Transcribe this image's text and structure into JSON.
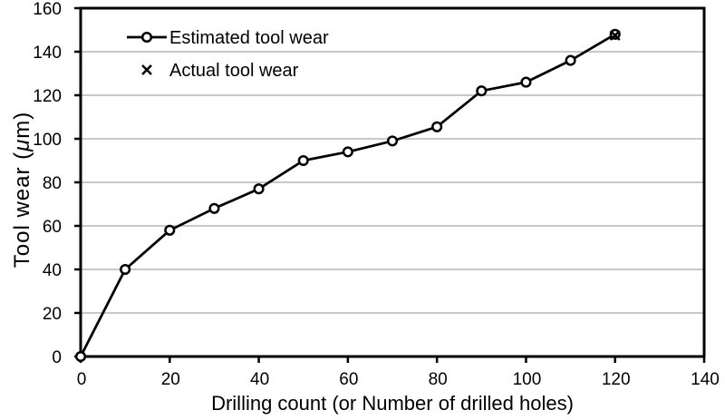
{
  "colors": {
    "axis": "#000000",
    "grid": "#a8a8a8",
    "text": "#000000",
    "series_line": "#000000",
    "marker_fill": "#ffffff",
    "background": "#ffffff"
  },
  "chart_data": {
    "type": "line",
    "title": "",
    "xlabel": "Drilling count (or Number of drilled holes)",
    "ylabel": "Tool wear (μm)",
    "xlim": [
      0,
      140
    ],
    "ylim": [
      0,
      160
    ],
    "xticks": [
      0,
      20,
      40,
      60,
      80,
      100,
      120,
      140
    ],
    "yticks": [
      0,
      20,
      40,
      60,
      80,
      100,
      120,
      140,
      160
    ],
    "grid": "horizontal-only",
    "legend_position": "top-left-inside",
    "series": [
      {
        "name": "Estimated tool wear",
        "marker": "circle",
        "line": true,
        "x": [
          0,
          10,
          20,
          30,
          40,
          50,
          60,
          70,
          80,
          90,
          100,
          110,
          120
        ],
        "y": [
          0,
          40,
          58,
          68,
          77,
          90,
          94,
          99,
          105.5,
          122,
          126,
          136,
          148
        ]
      },
      {
        "name": "Actual tool wear",
        "marker": "x",
        "line": false,
        "x": [
          120
        ],
        "y": [
          147.5
        ]
      }
    ]
  }
}
